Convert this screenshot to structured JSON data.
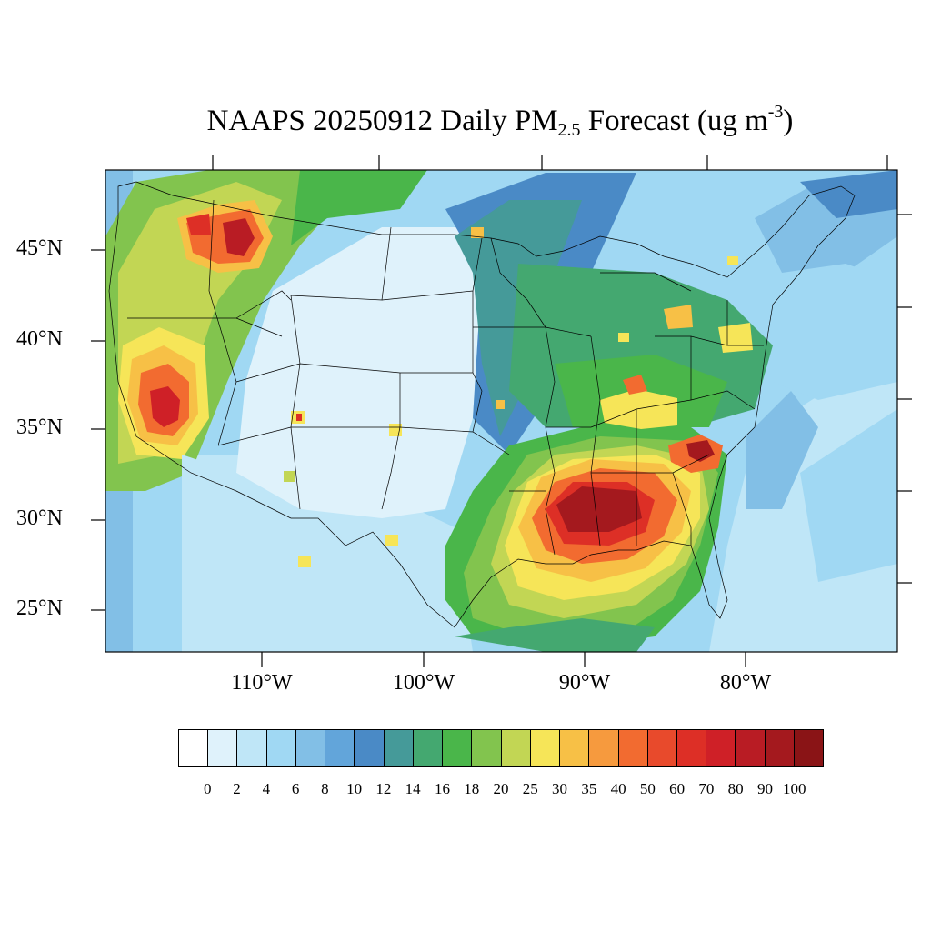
{
  "title": {
    "prefix": "NAAPS 20250912 Daily PM",
    "subscript": "2.5",
    "middle": " Forecast (ug m",
    "superscript": "-3",
    "suffix": ")"
  },
  "latitude_labels": [
    "45°N",
    "40°N",
    "35°N",
    "30°N",
    "25°N"
  ],
  "longitude_labels": [
    "110°W",
    "100°W",
    "90°W",
    "80°W"
  ],
  "colorbar": {
    "colors": [
      "#ffffff",
      "#dff2fb",
      "#bfe6f7",
      "#a0d8f3",
      "#82bfe6",
      "#62a5da",
      "#4a8ac6",
      "#459a99",
      "#44a870",
      "#4ab64a",
      "#82c44e",
      "#c2d654",
      "#f6e558",
      "#f7c046",
      "#f69a3e",
      "#f26b30",
      "#e84a2c",
      "#dd2f26",
      "#cf2027",
      "#b91c24",
      "#a4191e",
      "#8a1416"
    ],
    "tick_labels": [
      "0",
      "2",
      "4",
      "6",
      "8",
      "10",
      "12",
      "14",
      "16",
      "18",
      "20",
      "25",
      "30",
      "35",
      "40",
      "50",
      "60",
      "70",
      "80",
      "90",
      "100"
    ]
  }
}
